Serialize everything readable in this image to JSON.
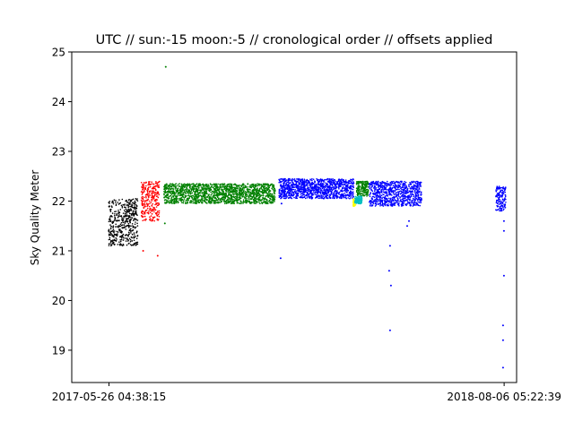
{
  "chart_data": {
    "type": "scatter",
    "title": "UTC // sun:-15 moon:-5 // cronological order // offsets applied",
    "xlabel": "",
    "ylabel": "Sky Quality Meter",
    "x_axis": {
      "kind": "datetime",
      "range": [
        "2017-04-15",
        "2018-08-20"
      ],
      "ticks": [
        "2017-05-26 04:38:15",
        "2018-08-06 05:22:39"
      ]
    },
    "ylim": [
      18.35,
      25.0
    ],
    "yticks": [
      19,
      20,
      21,
      22,
      23,
      24,
      25
    ],
    "grid": false,
    "legend": "none",
    "series": [
      {
        "color": "#000000",
        "x_range": [
          "2017-05-26",
          "2017-06-27"
        ],
        "y_band": [
          21.1,
          22.05
        ],
        "points": [
          {
            "x": "2017-05-26",
            "y": 21.4
          },
          {
            "x": "2017-05-28",
            "y": 21.6
          },
          {
            "x": "2017-05-31",
            "y": 21.3
          },
          {
            "x": "2017-06-03",
            "y": 21.2
          },
          {
            "x": "2017-06-06",
            "y": 21.5
          },
          {
            "x": "2017-06-10",
            "y": 21.3
          },
          {
            "x": "2017-06-14",
            "y": 21.6
          },
          {
            "x": "2017-06-18",
            "y": 21.7
          },
          {
            "x": "2017-06-22",
            "y": 21.8
          },
          {
            "x": "2017-06-26",
            "y": 21.9
          }
        ]
      },
      {
        "color": "#ff0000",
        "x_range": [
          "2017-07-01",
          "2017-07-21"
        ],
        "y_band": [
          21.6,
          22.4
        ],
        "points": [
          {
            "x": "2017-07-02",
            "y": 21.8
          },
          {
            "x": "2017-07-05",
            "y": 22.0
          },
          {
            "x": "2017-07-09",
            "y": 22.1
          },
          {
            "x": "2017-07-13",
            "y": 22.2
          },
          {
            "x": "2017-07-17",
            "y": 22.3
          },
          {
            "x": "2017-07-19",
            "y": 20.9
          },
          {
            "x": "2017-07-03",
            "y": 21.0
          }
        ]
      },
      {
        "color": "#008000",
        "x_range": [
          "2017-07-26",
          "2017-11-26"
        ],
        "y_band": [
          21.95,
          22.35
        ],
        "points": [
          {
            "x": "2017-07-28",
            "y": 22.1
          },
          {
            "x": "2017-08-05",
            "y": 22.2
          },
          {
            "x": "2017-08-20",
            "y": 22.2
          },
          {
            "x": "2017-09-10",
            "y": 22.15
          },
          {
            "x": "2017-09-25",
            "y": 22.2
          },
          {
            "x": "2017-10-15",
            "y": 22.15
          },
          {
            "x": "2017-11-05",
            "y": 22.2
          },
          {
            "x": "2017-11-20",
            "y": 22.2
          },
          {
            "x": "2017-07-27",
            "y": 21.55
          },
          {
            "x": "2017-07-28",
            "y": 24.7
          }
        ]
      },
      {
        "color": "#0000ff",
        "x_range": [
          "2017-11-30",
          "2018-02-21"
        ],
        "y_band": [
          22.05,
          22.45
        ],
        "points": [
          {
            "x": "2017-12-05",
            "y": 22.3
          },
          {
            "x": "2017-12-20",
            "y": 22.3
          },
          {
            "x": "2018-01-10",
            "y": 22.3
          },
          {
            "x": "2018-02-01",
            "y": 22.3
          },
          {
            "x": "2018-02-18",
            "y": 22.25
          },
          {
            "x": "2017-12-02",
            "y": 20.85
          },
          {
            "x": "2017-12-03",
            "y": 21.95
          }
        ]
      },
      {
        "color": "#008000",
        "x_range": [
          "2018-02-24",
          "2018-03-09"
        ],
        "y_band": [
          22.1,
          22.4
        ],
        "points": [
          {
            "x": "2018-02-26",
            "y": 22.3
          },
          {
            "x": "2018-03-02",
            "y": 22.25
          },
          {
            "x": "2018-03-07",
            "y": 22.3
          }
        ]
      },
      {
        "color": "#ffff00",
        "x_range": [
          "2018-02-20",
          "2018-02-23"
        ],
        "y_band": [
          21.9,
          22.05
        ],
        "points": [
          {
            "x": "2018-02-21",
            "y": 21.9
          },
          {
            "x": "2018-02-22",
            "y": 22.0
          }
        ]
      },
      {
        "color": "#00bfbf",
        "x_range": [
          "2018-02-22",
          "2018-03-02"
        ],
        "y_band": [
          21.95,
          22.1
        ],
        "points": [
          {
            "x": "2018-02-23",
            "y": 22.0
          },
          {
            "x": "2018-02-28",
            "y": 21.95
          }
        ]
      },
      {
        "color": "#0000ff",
        "x_range": [
          "2018-03-10",
          "2018-05-07"
        ],
        "y_band": [
          21.9,
          22.4
        ],
        "points": [
          {
            "x": "2018-03-20",
            "y": 22.2
          },
          {
            "x": "2018-04-01",
            "y": 22.2
          },
          {
            "x": "2018-04-15",
            "y": 22.1
          },
          {
            "x": "2018-05-01",
            "y": 22.1
          },
          {
            "x": "2018-04-01",
            "y": 20.6
          },
          {
            "x": "2018-04-02",
            "y": 19.4
          },
          {
            "x": "2018-04-03",
            "y": 20.3
          },
          {
            "x": "2018-04-02",
            "y": 21.1
          },
          {
            "x": "2018-04-23",
            "y": 21.6
          },
          {
            "x": "2018-04-21",
            "y": 21.5
          }
        ]
      },
      {
        "color": "#0000ff",
        "x_range": [
          "2018-07-28",
          "2018-08-08"
        ],
        "y_band": [
          21.8,
          22.3
        ],
        "points": [
          {
            "x": "2018-08-01",
            "y": 22.0
          },
          {
            "x": "2018-08-04",
            "y": 22.1
          },
          {
            "x": "2018-08-06",
            "y": 21.6
          },
          {
            "x": "2018-08-06",
            "y": 21.4
          },
          {
            "x": "2018-08-06",
            "y": 20.5
          },
          {
            "x": "2018-08-05",
            "y": 19.5
          },
          {
            "x": "2018-08-05",
            "y": 19.2
          },
          {
            "x": "2018-08-05",
            "y": 18.65
          }
        ]
      }
    ]
  }
}
